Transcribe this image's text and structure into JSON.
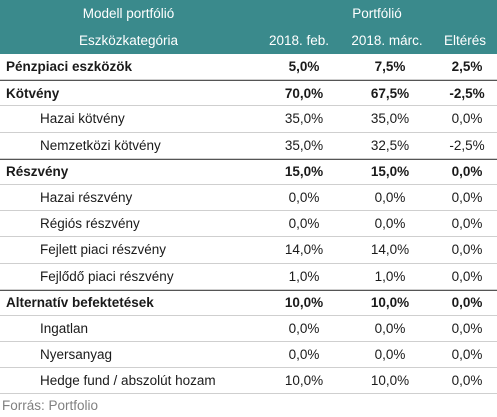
{
  "header": {
    "title_model": "Modell portfólió",
    "title_portfolio": "Portfólió",
    "col_category": "Eszközkategória",
    "col_feb": "2018. feb.",
    "col_marc": "2018. márc.",
    "col_elteres": "Eltérés"
  },
  "rows": [
    {
      "label": "Pénzpiaci eszközök",
      "feb": "5,0%",
      "marc": "7,5%",
      "elt": "2,5%"
    },
    {
      "label": "Kötvény",
      "feb": "70,0%",
      "marc": "67,5%",
      "elt": "-2,5%"
    },
    {
      "label": "Hazai kötvény",
      "feb": "35,0%",
      "marc": "35,0%",
      "elt": "0,0%"
    },
    {
      "label": "Nemzetközi kötvény",
      "feb": "35,0%",
      "marc": "32,5%",
      "elt": "-2,5%"
    },
    {
      "label": "Részvény",
      "feb": "15,0%",
      "marc": "15,0%",
      "elt": "0,0%"
    },
    {
      "label": "Hazai részvény",
      "feb": "0,0%",
      "marc": "0,0%",
      "elt": "0,0%"
    },
    {
      "label": "Régiós részvény",
      "feb": "0,0%",
      "marc": "0,0%",
      "elt": "0,0%"
    },
    {
      "label": "Fejlett piaci részvény",
      "feb": "14,0%",
      "marc": "14,0%",
      "elt": "0,0%"
    },
    {
      "label": "Fejlődő piaci részvény",
      "feb": "1,0%",
      "marc": "1,0%",
      "elt": "0,0%"
    },
    {
      "label": "Alternatív befektetések",
      "feb": "10,0%",
      "marc": "10,0%",
      "elt": "0,0%"
    },
    {
      "label": "Ingatlan",
      "feb": "0,0%",
      "marc": "0,0%",
      "elt": "0,0%"
    },
    {
      "label": "Nyersanyag",
      "feb": "0,0%",
      "marc": "0,0%",
      "elt": "0,0%"
    },
    {
      "label": "Hedge fund / abszolút hozam",
      "feb": "10,0%",
      "marc": "10,0%",
      "elt": "0,0%"
    }
  ],
  "source": "Forrás: Portfolio",
  "colors": {
    "header_bg": "#3a8a8c"
  }
}
